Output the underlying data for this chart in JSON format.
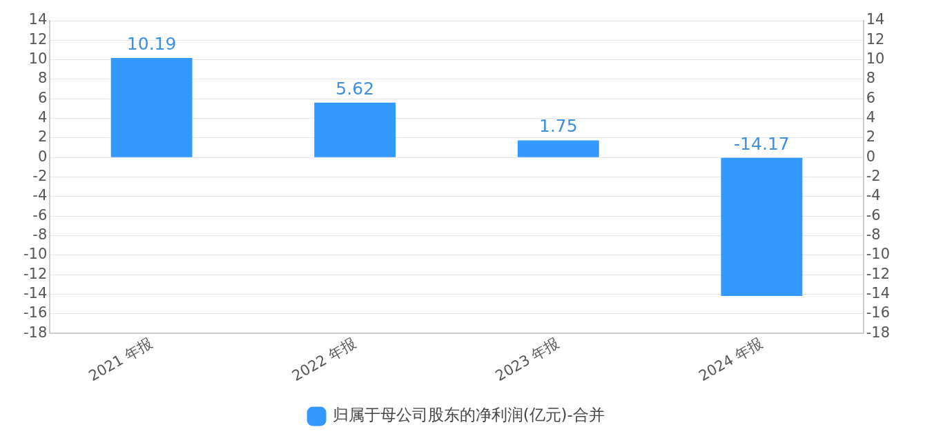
{
  "chart_data": {
    "type": "bar",
    "categories": [
      "2021 年报",
      "2022 年报",
      "2023 年报",
      "2024 年报"
    ],
    "series": [
      {
        "name": "归属于母公司股东的净利润(亿元)-合并",
        "color": "#3399ff",
        "values": [
          10.19,
          5.62,
          1.75,
          -14.17
        ]
      }
    ],
    "data_labels": true,
    "ylim": [
      -18,
      14
    ],
    "yticks": [
      -18,
      -16,
      -14,
      -12,
      -10,
      -8,
      -6,
      -4,
      -2,
      0,
      2,
      4,
      6,
      8,
      10,
      12,
      14
    ],
    "y2lim": [
      -18,
      14
    ],
    "y2ticks": [
      -18,
      -16,
      -14,
      -12,
      -10,
      -8,
      -6,
      -4,
      -2,
      0,
      2,
      4,
      6,
      8,
      10,
      12,
      14
    ],
    "grid": "y",
    "legend": "bottom"
  }
}
